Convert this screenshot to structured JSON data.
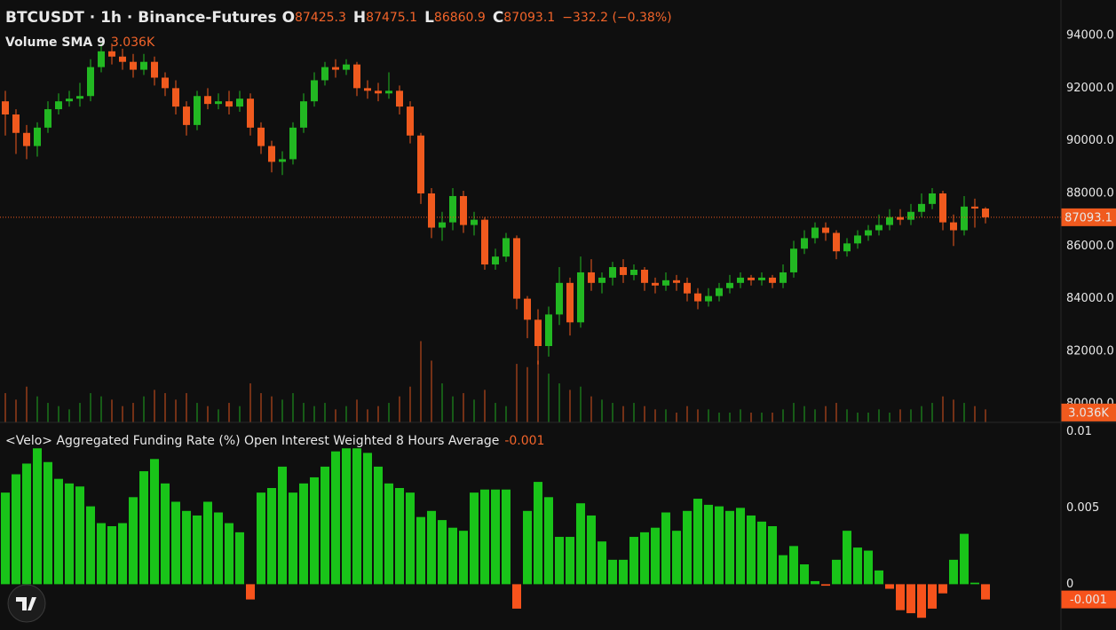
{
  "chart_data": [
    {
      "type": "candlestick",
      "title": "BTCUSDT · 1h · Binance-Futures",
      "ohlc_labels": [
        "O",
        "H",
        "L",
        "C"
      ],
      "change_text": "−332.2 (−0.38%)",
      "up_color": "#22b822",
      "down_color": "#f05a1e",
      "open": [
        91500,
        91000,
        90300,
        89800,
        90500,
        91200,
        91500,
        91600,
        91700,
        92800,
        93400,
        93200,
        93000,
        92700,
        93000,
        92400,
        92000,
        91300,
        90600,
        91700,
        91400,
        91500,
        91300,
        91600,
        90500,
        89800,
        89200,
        89300,
        90500,
        91500,
        92300,
        92800,
        92700,
        92900,
        92000,
        91900,
        91800,
        91900,
        91300,
        90200,
        88000,
        86700,
        86900,
        87900,
        86800,
        87000,
        85300,
        85600,
        86300,
        84000,
        83200,
        82200,
        83400,
        84600,
        83100,
        85000,
        84600,
        84800,
        85200,
        84900,
        85100,
        84600,
        84500,
        84700,
        84600,
        84200,
        83900,
        84100,
        84400,
        84600,
        84800,
        84700,
        84800,
        84600,
        85000,
        85900,
        86300,
        86700,
        86500,
        85800,
        86100,
        86400,
        86600,
        86800,
        87100,
        87000,
        87300,
        87600,
        88000,
        86900,
        86600,
        87500,
        87425.3
      ],
      "high": [
        91900,
        91200,
        90600,
        90700,
        91500,
        91800,
        91900,
        92200,
        93100,
        93700,
        93700,
        93500,
        93300,
        93300,
        93200,
        92600,
        92300,
        91500,
        91900,
        92000,
        91800,
        91900,
        91900,
        91800,
        90700,
        90000,
        89600,
        90700,
        91800,
        92600,
        93000,
        93100,
        93100,
        93000,
        92300,
        92200,
        92600,
        92100,
        91500,
        90300,
        88200,
        87300,
        88200,
        88100,
        87300,
        87100,
        85900,
        86500,
        86400,
        84100,
        83600,
        83700,
        85200,
        84800,
        85600,
        85500,
        85000,
        85400,
        85500,
        85300,
        85200,
        84800,
        85000,
        84900,
        84800,
        84400,
        84400,
        84600,
        84900,
        85000,
        84900,
        85000,
        84900,
        85300,
        86200,
        86600,
        86900,
        86900,
        86600,
        86300,
        86600,
        86800,
        87200,
        87400,
        87400,
        87600,
        88000,
        88200,
        88100,
        87200,
        87900,
        87800,
        87475.1
      ],
      "low": [
        90200,
        89500,
        89300,
        89400,
        90300,
        91000,
        91300,
        91300,
        91500,
        92600,
        92900,
        92700,
        92400,
        92500,
        92100,
        91700,
        91000,
        90200,
        90400,
        91200,
        91200,
        91000,
        91100,
        90200,
        89500,
        88800,
        88700,
        89100,
        90300,
        91300,
        92100,
        92400,
        92500,
        91700,
        91600,
        91500,
        91600,
        91000,
        89900,
        87600,
        86300,
        86200,
        86600,
        86500,
        86400,
        85100,
        85100,
        85400,
        83600,
        82500,
        81500,
        81800,
        83000,
        82600,
        82900,
        84300,
        84200,
        84500,
        84600,
        84700,
        84300,
        84200,
        84300,
        84300,
        83900,
        83600,
        83700,
        83900,
        84200,
        84400,
        84500,
        84500,
        84400,
        84400,
        84800,
        85700,
        86100,
        86200,
        85500,
        85600,
        85900,
        86200,
        86400,
        86600,
        86800,
        86800,
        87100,
        87400,
        86600,
        86000,
        86400,
        86700,
        86860.9
      ],
      "close": [
        91000,
        90300,
        89800,
        90500,
        91200,
        91500,
        91600,
        91700,
        92800,
        93400,
        93200,
        93000,
        92700,
        93000,
        92400,
        92000,
        91300,
        90600,
        91700,
        91400,
        91500,
        91300,
        91600,
        90500,
        89800,
        89200,
        89300,
        90500,
        91500,
        92300,
        92800,
        92700,
        92900,
        92000,
        91900,
        91800,
        91900,
        91300,
        90200,
        88000,
        86700,
        86900,
        87900,
        86800,
        87000,
        85300,
        85600,
        86300,
        84000,
        83200,
        82200,
        83400,
        84600,
        83100,
        85000,
        84600,
        84800,
        85200,
        84900,
        85100,
        84600,
        84500,
        84700,
        84600,
        84200,
        83900,
        84100,
        84400,
        84600,
        84800,
        84700,
        84800,
        84600,
        85000,
        85900,
        86300,
        86700,
        86500,
        85800,
        86100,
        86400,
        86600,
        86800,
        87100,
        87000,
        87300,
        87600,
        88000,
        86900,
        86600,
        87500,
        87425.3,
        87093.1
      ],
      "ylim": [
        79300,
        95350
      ],
      "yticks": [
        {
          "value": 80000,
          "label": "80000.0"
        },
        {
          "value": 82000,
          "label": "82000.0"
        },
        {
          "value": 84000,
          "label": "84000.0"
        },
        {
          "value": 86000,
          "label": "86000.0"
        },
        {
          "value": 88000,
          "label": "88000.0"
        },
        {
          "value": 90000,
          "label": "90000.0"
        },
        {
          "value": 92000,
          "label": "92000.0"
        },
        {
          "value": 94000,
          "label": "94000.0"
        }
      ],
      "volume": {
        "name": "Volume SMA 9",
        "values": [
          9,
          7,
          11,
          8,
          6,
          5,
          4,
          6,
          9,
          8,
          7,
          5,
          6,
          8,
          10,
          9,
          7,
          9,
          6,
          5,
          4,
          6,
          5,
          12,
          9,
          8,
          7,
          9,
          6,
          5,
          6,
          4,
          5,
          7,
          4,
          5,
          6,
          8,
          11,
          25,
          19,
          12,
          8,
          9,
          7,
          10,
          6,
          5,
          18,
          17,
          19,
          15,
          12,
          10,
          11,
          8,
          7,
          6,
          5,
          6,
          5,
          4,
          4,
          3,
          5,
          4,
          4,
          3,
          3,
          4,
          3,
          3,
          3,
          4,
          6,
          5,
          4,
          5,
          6,
          4,
          3,
          3,
          4,
          3,
          4,
          4,
          5,
          6,
          8,
          7,
          6,
          5,
          4
        ],
        "sma": 3.036,
        "sma_label": "3.036K",
        "ylim": [
          0,
          130
        ]
      }
    },
    {
      "type": "bar",
      "title": "<Velo> Aggregated Funding Rate (%) Open Interest Weighted 8 Hours Average",
      "pos_color": "#19c419",
      "neg_color": "#f7531c",
      "values": [
        0.006,
        0.0072,
        0.0079,
        0.0089,
        0.008,
        0.0069,
        0.0066,
        0.0064,
        0.0051,
        0.004,
        0.0038,
        0.004,
        0.0057,
        0.0074,
        0.0082,
        0.0066,
        0.0054,
        0.0048,
        0.0045,
        0.0054,
        0.0047,
        0.004,
        0.0034,
        -0.001,
        0.006,
        0.0063,
        0.0077,
        0.006,
        0.0066,
        0.007,
        0.0077,
        0.0087,
        0.0089,
        0.0089,
        0.0086,
        0.0077,
        0.0066,
        0.0063,
        0.006,
        0.0044,
        0.0048,
        0.0042,
        0.0037,
        0.0035,
        0.006,
        0.0062,
        0.0062,
        0.0062,
        -0.0016,
        0.0048,
        0.0067,
        0.0057,
        0.0031,
        0.0031,
        0.0053,
        0.0045,
        0.0028,
        0.0016,
        0.0016,
        0.0031,
        0.0034,
        0.0037,
        0.0047,
        0.0035,
        0.0048,
        0.0056,
        0.0052,
        0.0051,
        0.0048,
        0.005,
        0.0045,
        0.0041,
        0.0038,
        0.0019,
        0.0025,
        0.0013,
        0.0002,
        -0.0001,
        0.0016,
        0.0035,
        0.0024,
        0.0022,
        0.0009,
        -0.0003,
        -0.0017,
        -0.0019,
        -0.0022,
        -0.0016,
        -0.0006,
        0.0016,
        0.0033,
        0.0001,
        -0.001
      ],
      "ylim": [
        -0.003,
        0.0106
      ],
      "yticks": [
        0,
        0.005,
        0.01
      ]
    }
  ]
}
